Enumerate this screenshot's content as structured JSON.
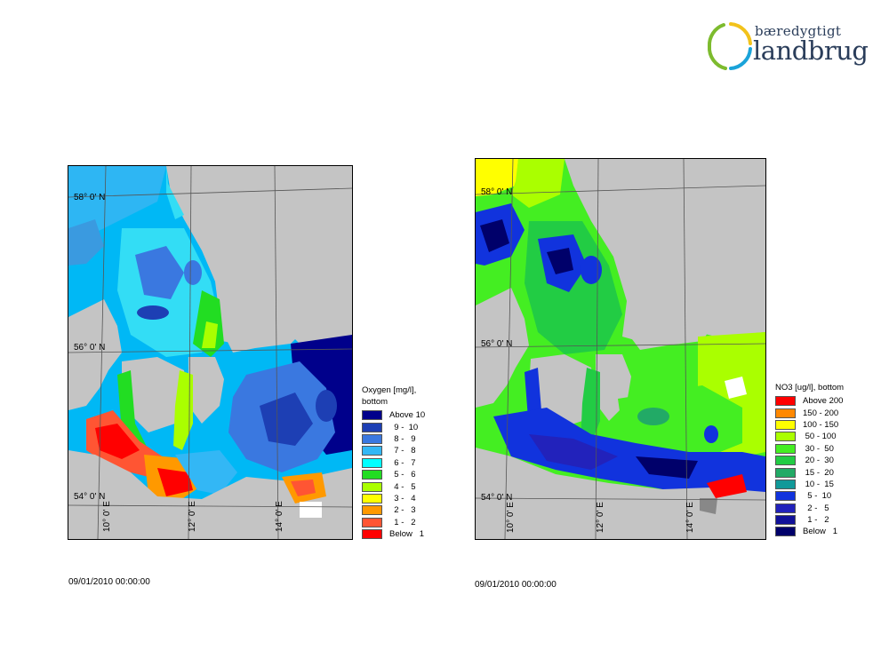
{
  "logo": {
    "line1": "bæredygtigt",
    "line2": "landbrug"
  },
  "left_map": {
    "legend_title": [
      "Oxygen [mg/l],",
      "bottom"
    ],
    "legend": [
      {
        "label": "Above 10",
        "color": "#00008b"
      },
      {
        "label": "  9 -  10",
        "color": "#1d3fb4"
      },
      {
        "label": "  8 -   9",
        "color": "#3a78e0"
      },
      {
        "label": "  7 -   8",
        "color": "#33b7f5"
      },
      {
        "label": "  6 -   7",
        "color": "#00ffff"
      },
      {
        "label": "  5 -   6",
        "color": "#22dd22"
      },
      {
        "label": "  4 -   5",
        "color": "#aaff00"
      },
      {
        "label": "  3 -   4",
        "color": "#ffff00"
      },
      {
        "label": "  2 -   3",
        "color": "#ff9900"
      },
      {
        "label": "  1 -   2",
        "color": "#ff5533"
      },
      {
        "label": "Below   1",
        "color": "#ff0000"
      }
    ],
    "lat_labels": [
      "58° 0' N",
      "56° 0' N",
      "54° 0' N"
    ],
    "lon_labels": [
      "10° 0' E",
      "12° 0' E",
      "14° 0' E"
    ],
    "timestamp": "09/01/2010 00:00:00"
  },
  "right_map": {
    "legend_title": [
      "NO3 [ug/l], bottom"
    ],
    "legend": [
      {
        "label": "Above 200",
        "color": "#ff0000"
      },
      {
        "label": "150 - 200",
        "color": "#ff8800"
      },
      {
        "label": "100 - 150",
        "color": "#ffff00"
      },
      {
        "label": " 50 - 100",
        "color": "#aaff00"
      },
      {
        "label": " 30 -  50",
        "color": "#44ee22"
      },
      {
        "label": " 20 -  30",
        "color": "#22cc44"
      },
      {
        "label": " 15 -  20",
        "color": "#22aa66"
      },
      {
        "label": " 10 -  15",
        "color": "#119999"
      },
      {
        "label": "  5 -  10",
        "color": "#1133dd"
      },
      {
        "label": "  2 -   5",
        "color": "#2222bb"
      },
      {
        "label": "  1 -   2",
        "color": "#111199"
      },
      {
        "label": "Below   1",
        "color": "#00006a"
      }
    ],
    "lat_labels": [
      "58° 0' N",
      "56° 0' N",
      "54° 0' N"
    ],
    "lon_labels": [
      "10° 0' E",
      "12° 0' E",
      "14° 0' E"
    ],
    "timestamp": "09/01/2010 00:00:00"
  }
}
